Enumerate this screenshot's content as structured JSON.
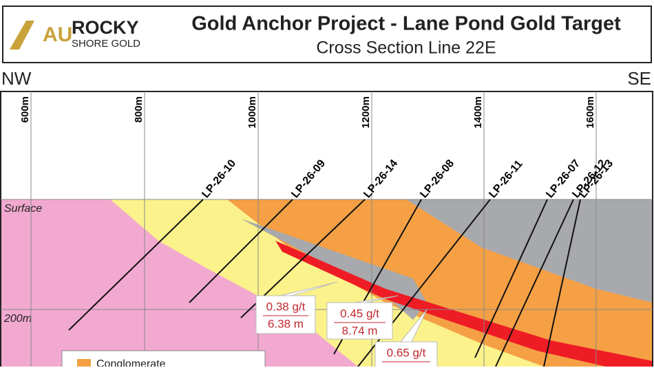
{
  "header": {
    "title": "Gold Anchor Project - Lane Pond Gold Target",
    "subtitle": "Cross Section Line 22E"
  },
  "logo": {
    "mark": "AU",
    "name": "ROCKY",
    "tagline": "SHORE GOLD"
  },
  "directions": {
    "left": "NW",
    "right": "SE"
  },
  "grid_labels": [
    "600m",
    "800m",
    "1000m",
    "1200m",
    "1400m",
    "1600m"
  ],
  "holes": [
    "LP-26-10",
    "LP-26-09",
    "LP-26-14",
    "LP-26-08",
    "LP-26-11",
    "LP-26-07",
    "LP-26-12",
    "LP-26-13"
  ],
  "depth_labels": {
    "surface": "Surface",
    "d200": "200m"
  },
  "intercepts": [
    {
      "grade": "0.38 g/t",
      "width": "6.38 m"
    },
    {
      "grade": "0.45 g/t",
      "width": "8.74 m"
    },
    {
      "grade": "0.65 g/t"
    }
  ],
  "legend": [
    "Conglomerate"
  ]
}
